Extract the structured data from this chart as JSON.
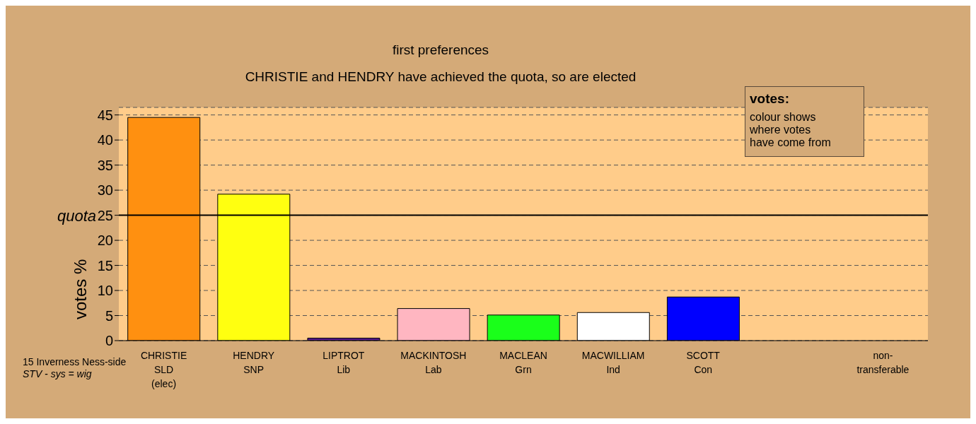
{
  "chart_data": {
    "type": "bar",
    "title": "first preferences",
    "subtitle": "CHRISTIE and HENDRY have achieved the quota, so are elected",
    "ylabel": "votes %",
    "categories": [
      "CHRISTIE\nSLD\n(elec)",
      "HENDRY\nSNP",
      "LIPTROT\nLib",
      "MACKINTOSH\nLab",
      "MACLEAN\nGrn",
      "MACWILLIAM\nInd",
      "SCOTT\nCon",
      null,
      "non-\ntransferable"
    ],
    "values": [
      44.5,
      29.2,
      0.5,
      6.4,
      5.1,
      5.6,
      8.7,
      null,
      0
    ],
    "colors": [
      "#ff9010",
      "#ffff10",
      "#551a8b",
      "#ffb6c1",
      "#1aff1a",
      "#ffffff",
      "#0000ff",
      "#808080",
      "#808080"
    ],
    "ylim": [
      0,
      46.5
    ],
    "yticks": [
      0,
      5,
      10,
      15,
      20,
      25,
      30,
      35,
      40,
      45
    ],
    "grid": "y",
    "ref_lines": [
      {
        "axis": "y",
        "value": 25,
        "label": "quota",
        "color": "#000000"
      }
    ],
    "annotations": [
      "15 Inverness Ness-side",
      "STV - sys = wig",
      "votes:",
      "colour shows\nwhere votes\nhave come from"
    ]
  }
}
